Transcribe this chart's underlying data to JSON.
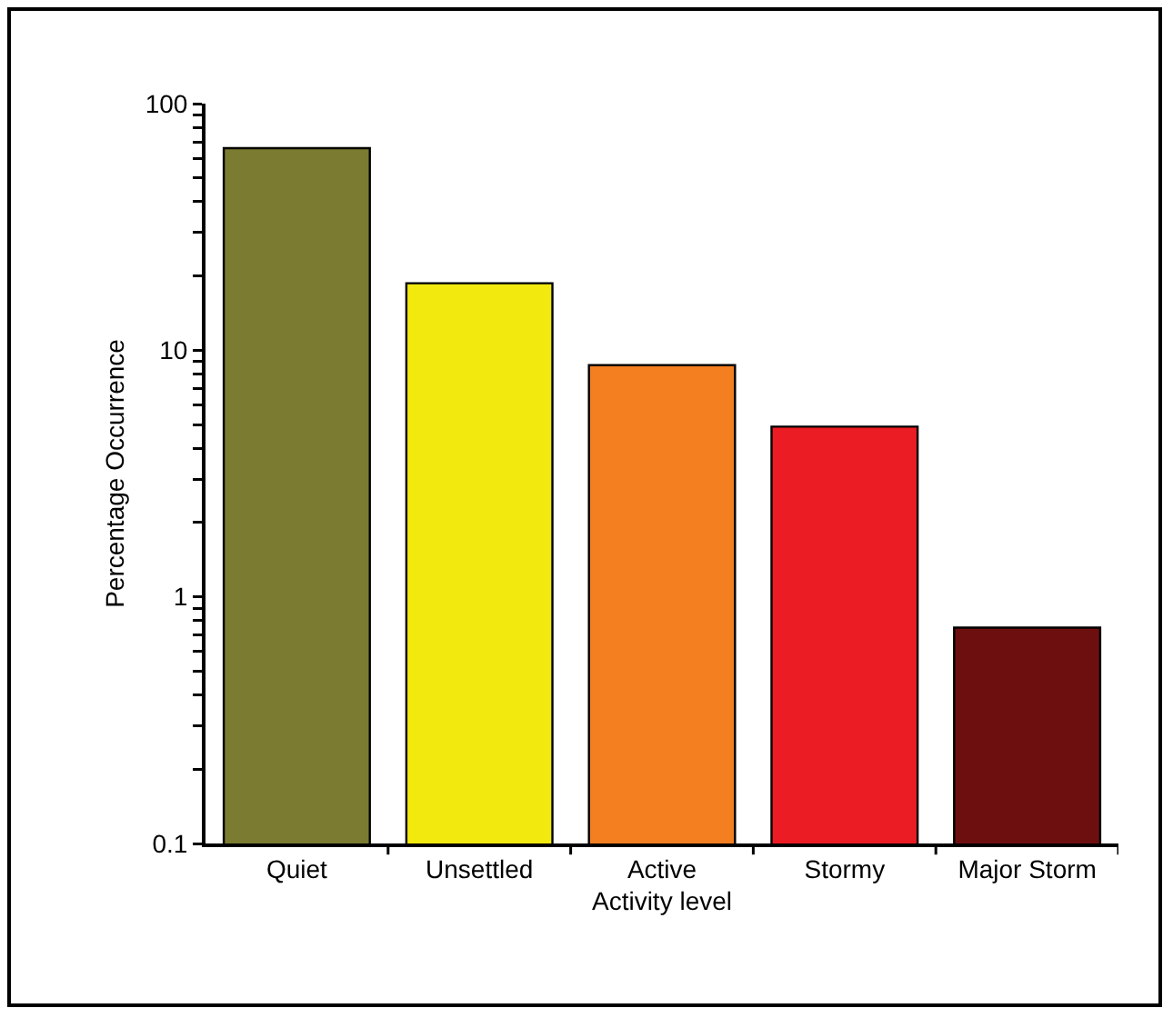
{
  "chart_data": {
    "type": "bar",
    "xlabel": "Activity level",
    "ylabel": "Percentage Occurrence",
    "categories": [
      "Quiet",
      "Unsettled",
      "Active",
      "Stormy",
      "Major Storm"
    ],
    "values": [
      66,
      18.7,
      8.7,
      4.9,
      0.75
    ],
    "colors": [
      "#7b7b32",
      "#f2e90f",
      "#f47f20",
      "#ec1c24",
      "#6e0f0f"
    ],
    "log": true,
    "ylim": [
      0.1,
      100
    ],
    "yticks": [
      0.1,
      {
        "value": 0.2,
        "label": null
      },
      {
        "value": 0.3,
        "label": null
      },
      {
        "value": 0.4,
        "label": null
      },
      {
        "value": 0.5,
        "label": null
      },
      {
        "value": 0.6,
        "label": null
      },
      {
        "value": 0.7,
        "label": null
      },
      {
        "value": 0.8,
        "label": null
      },
      {
        "value": 0.9,
        "label": null
      },
      1,
      {
        "value": 2,
        "label": null
      },
      {
        "value": 3,
        "label": null
      },
      {
        "value": 4,
        "label": null
      },
      {
        "value": 5,
        "label": null
      },
      {
        "value": 6,
        "label": null
      },
      {
        "value": 7,
        "label": null
      },
      {
        "value": 8,
        "label": null
      },
      {
        "value": 9,
        "label": null
      },
      10,
      {
        "value": 20,
        "label": null
      },
      {
        "value": 30,
        "label": null
      },
      {
        "value": 40,
        "label": null
      },
      {
        "value": 50,
        "label": null
      },
      {
        "value": 60,
        "label": null
      },
      {
        "value": 70,
        "label": null
      },
      {
        "value": 80,
        "label": null
      },
      {
        "value": 90,
        "label": null
      },
      100
    ],
    "grid": false
  }
}
